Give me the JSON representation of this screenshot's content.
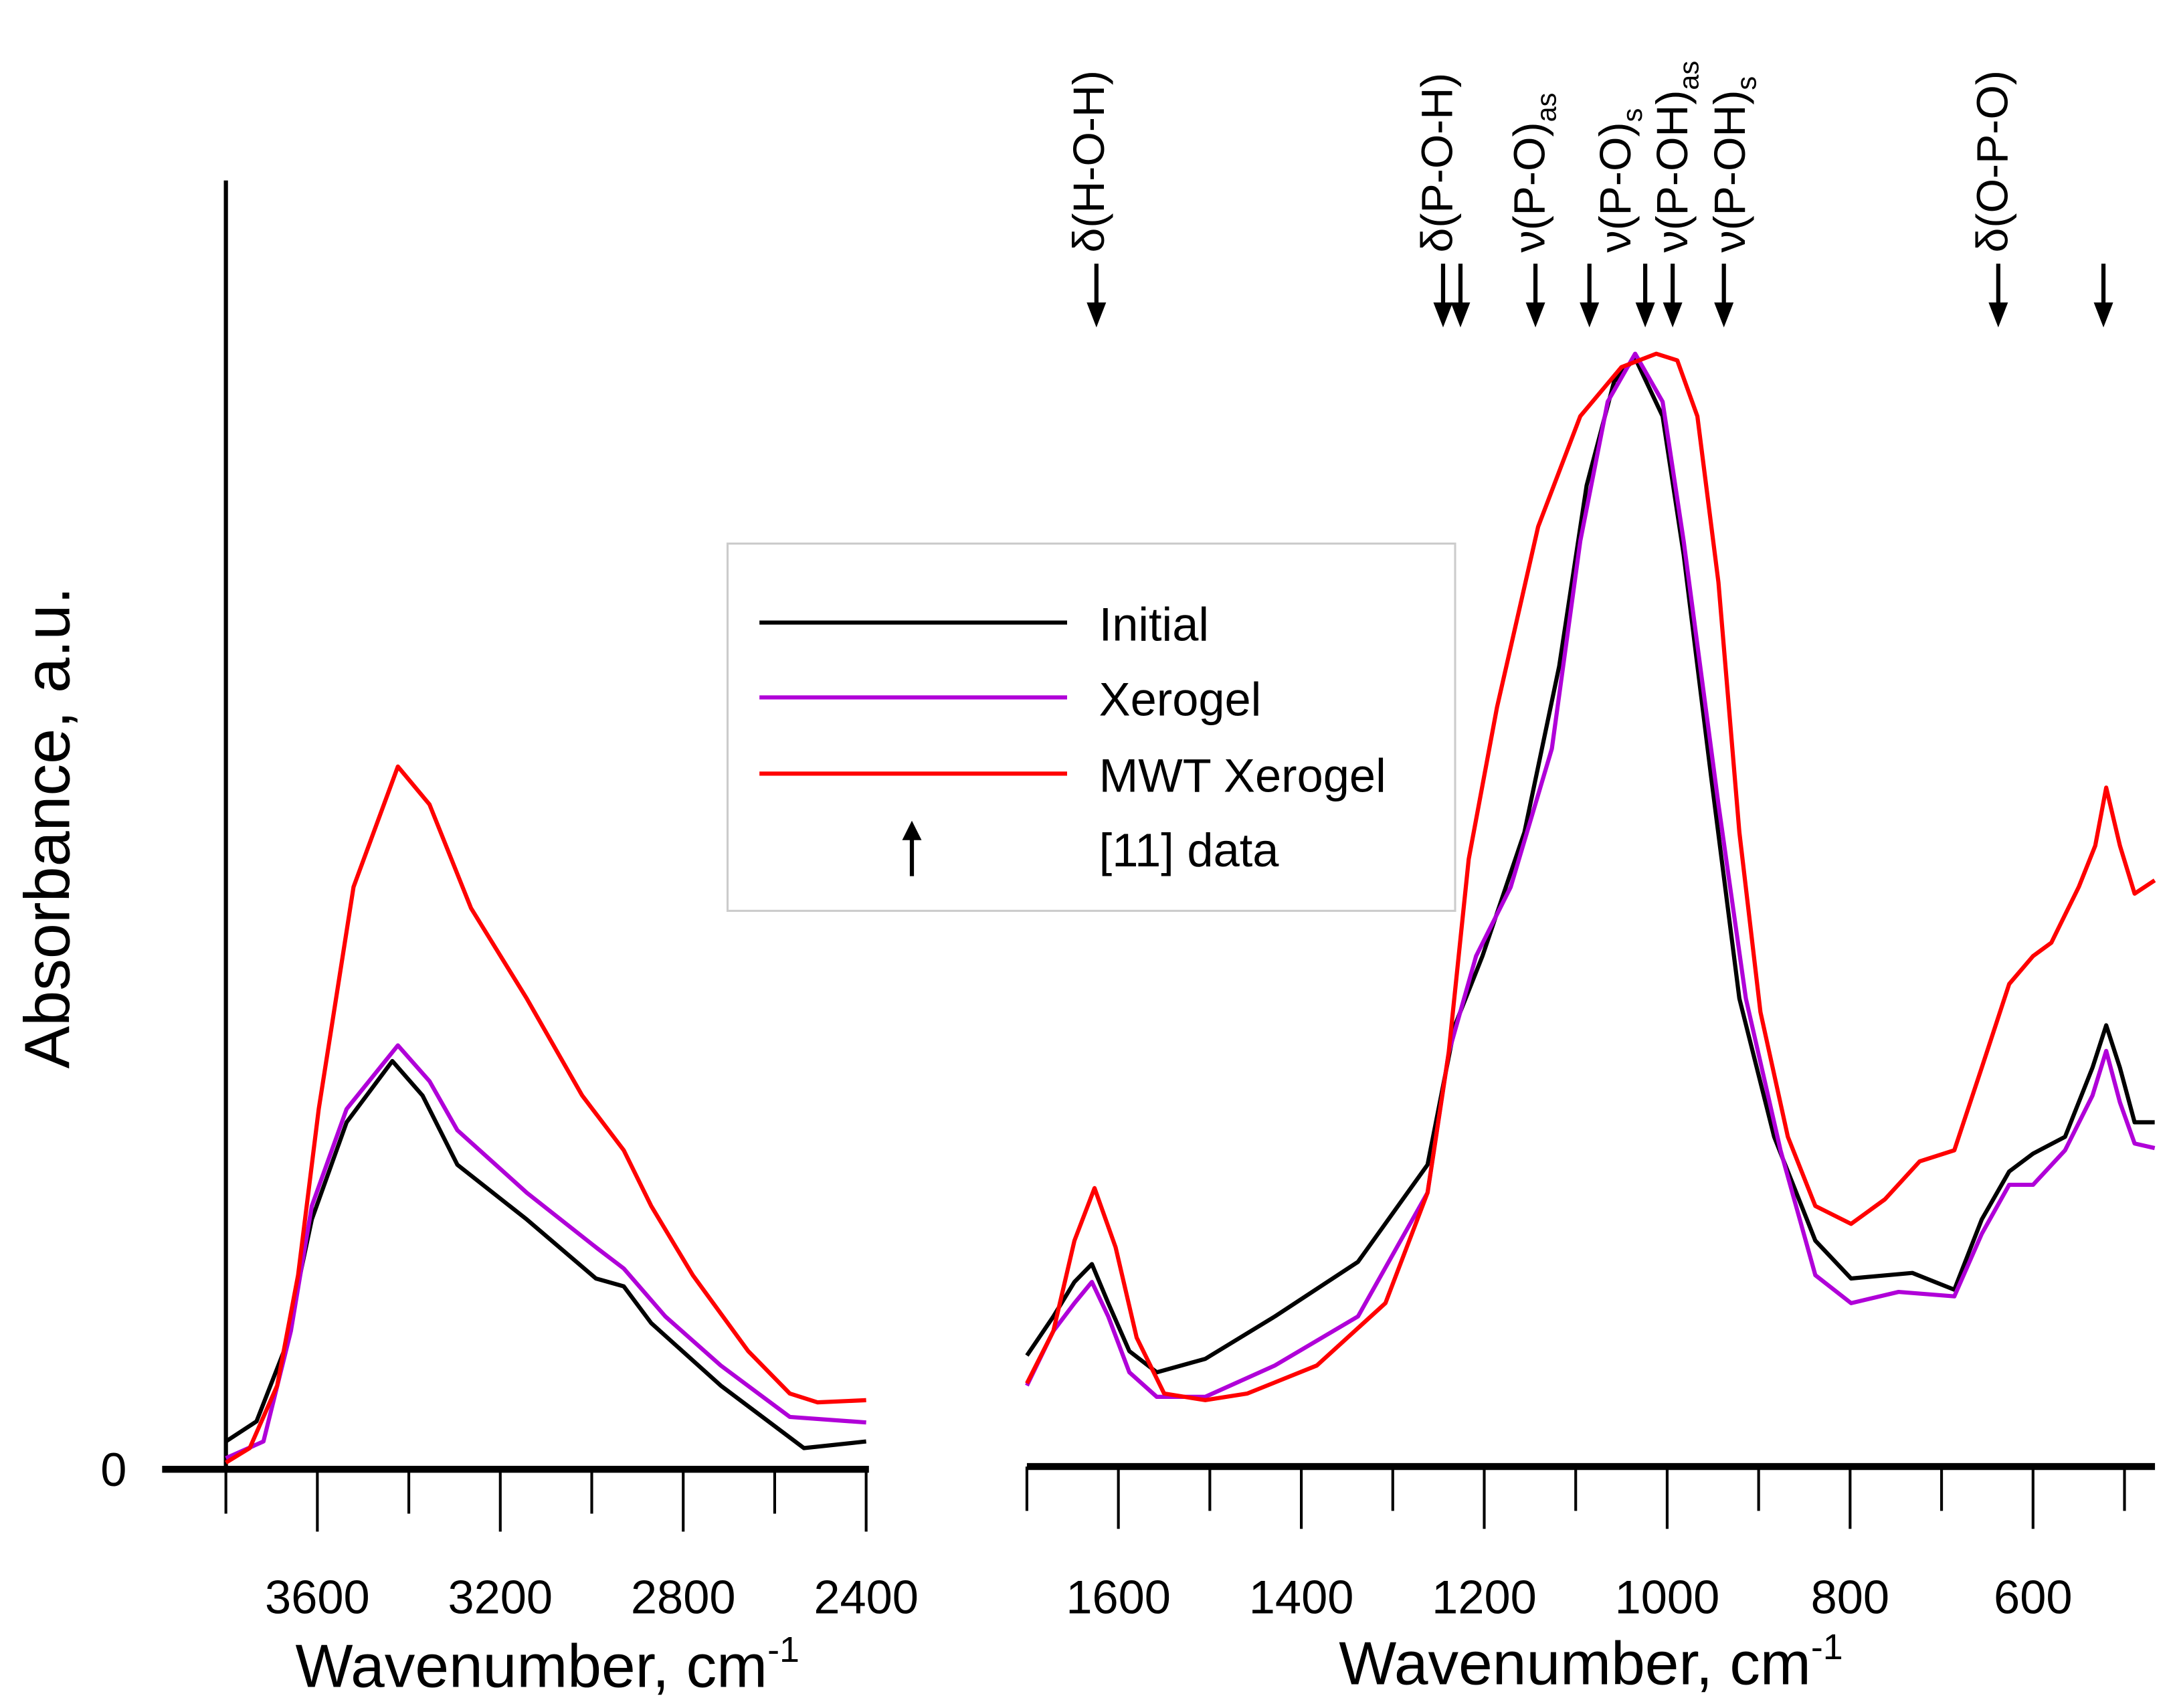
{
  "chart_data": {
    "type": "line",
    "ylabel": "Absorbance, a.u.",
    "y_zero_label": "0",
    "ylim": [
      0,
      1.15
    ],
    "panels": [
      {
        "xlabel": "Wavenumber, cm",
        "xlabel_sup": "-1",
        "xlim": [
          3800,
          2400
        ],
        "ticks": [
          "3600",
          "3200",
          "2800",
          "2400"
        ],
        "tick_values": [
          3600,
          3200,
          2800,
          2400
        ],
        "minor_tick_values": [
          3800,
          3400,
          3000,
          2600
        ]
      },
      {
        "xlabel": "Wavenumber, cm",
        "xlabel_sup": "-1",
        "xlim": [
          1700,
          466
        ],
        "ticks": [
          "1600",
          "1400",
          "1200",
          "1000",
          "800",
          "600"
        ],
        "tick_values": [
          1600,
          1400,
          1200,
          1000,
          800,
          600
        ],
        "minor_tick_values": [
          1700,
          1500,
          1300,
          1100,
          900,
          700,
          500
        ]
      }
    ],
    "series": [
      {
        "name": "Initial",
        "color": "#000000",
        "left": [
          [
            3800,
            0.025
          ],
          [
            3733,
            0.043
          ],
          [
            3673,
            0.106
          ],
          [
            3612,
            0.224
          ],
          [
            3536,
            0.311
          ],
          [
            3436,
            0.366
          ],
          [
            3370,
            0.335
          ],
          [
            3294,
            0.273
          ],
          [
            3142,
            0.224
          ],
          [
            2991,
            0.171
          ],
          [
            2930,
            0.164
          ],
          [
            2870,
            0.131
          ],
          [
            2718,
            0.075
          ],
          [
            2536,
            0.019
          ],
          [
            2400,
            0.025
          ]
        ],
        "right": [
          [
            1700,
            0.102
          ],
          [
            1671,
            0.137
          ],
          [
            1648,
            0.168
          ],
          [
            1629,
            0.184
          ],
          [
            1611,
            0.149
          ],
          [
            1588,
            0.106
          ],
          [
            1558,
            0.087
          ],
          [
            1505,
            0.099
          ],
          [
            1429,
            0.137
          ],
          [
            1338,
            0.186
          ],
          [
            1262,
            0.273
          ],
          [
            1232,
            0.398
          ],
          [
            1202,
            0.46
          ],
          [
            1156,
            0.571
          ],
          [
            1118,
            0.72
          ],
          [
            1088,
            0.882
          ],
          [
            1058,
            0.975
          ],
          [
            1035,
            0.996
          ],
          [
            1005,
            0.944
          ],
          [
            982,
            0.82
          ],
          [
            952,
            0.621
          ],
          [
            921,
            0.422
          ],
          [
            883,
            0.298
          ],
          [
            838,
            0.205
          ],
          [
            799,
            0.171
          ],
          [
            732,
            0.176
          ],
          [
            686,
            0.161
          ],
          [
            656,
            0.224
          ],
          [
            626,
            0.267
          ],
          [
            600,
            0.283
          ],
          [
            565,
            0.298
          ],
          [
            535,
            0.36
          ],
          [
            520,
            0.398
          ],
          [
            505,
            0.36
          ],
          [
            489,
            0.311
          ],
          [
            467,
            0.311
          ]
        ]
      },
      {
        "name": "Xerogel",
        "color": "#b000d8",
        "left": [
          [
            3800,
            0.01
          ],
          [
            3718,
            0.025
          ],
          [
            3658,
            0.124
          ],
          [
            3612,
            0.236
          ],
          [
            3536,
            0.323
          ],
          [
            3424,
            0.38
          ],
          [
            3355,
            0.348
          ],
          [
            3294,
            0.304
          ],
          [
            3142,
            0.248
          ],
          [
            2991,
            0.199
          ],
          [
            2930,
            0.18
          ],
          [
            2839,
            0.137
          ],
          [
            2718,
            0.093
          ],
          [
            2567,
            0.047
          ],
          [
            2400,
            0.042
          ]
        ],
        "right": [
          [
            1700,
            0.075
          ],
          [
            1671,
            0.124
          ],
          [
            1648,
            0.149
          ],
          [
            1629,
            0.168
          ],
          [
            1611,
            0.137
          ],
          [
            1588,
            0.087
          ],
          [
            1558,
            0.065
          ],
          [
            1505,
            0.065
          ],
          [
            1429,
            0.093
          ],
          [
            1338,
            0.137
          ],
          [
            1262,
            0.248
          ],
          [
            1239,
            0.373
          ],
          [
            1209,
            0.46
          ],
          [
            1171,
            0.522
          ],
          [
            1126,
            0.646
          ],
          [
            1095,
            0.832
          ],
          [
            1065,
            0.957
          ],
          [
            1035,
            1.0
          ],
          [
            1005,
            0.957
          ],
          [
            982,
            0.832
          ],
          [
            944,
            0.596
          ],
          [
            914,
            0.422
          ],
          [
            876,
            0.286
          ],
          [
            838,
            0.174
          ],
          [
            799,
            0.149
          ],
          [
            747,
            0.159
          ],
          [
            686,
            0.155
          ],
          [
            656,
            0.211
          ],
          [
            626,
            0.255
          ],
          [
            600,
            0.255
          ],
          [
            565,
            0.286
          ],
          [
            535,
            0.335
          ],
          [
            520,
            0.375
          ],
          [
            505,
            0.329
          ],
          [
            489,
            0.292
          ],
          [
            467,
            0.288
          ]
        ]
      },
      {
        "name": "MWT Xerogel",
        "color": "#ff0000",
        "left": [
          [
            3800,
            0.006
          ],
          [
            3748,
            0.019
          ],
          [
            3688,
            0.075
          ],
          [
            3642,
            0.174
          ],
          [
            3597,
            0.323
          ],
          [
            3521,
            0.522
          ],
          [
            3424,
            0.63
          ],
          [
            3355,
            0.596
          ],
          [
            3264,
            0.503
          ],
          [
            3142,
            0.422
          ],
          [
            3021,
            0.335
          ],
          [
            2930,
            0.286
          ],
          [
            2870,
            0.236
          ],
          [
            2779,
            0.174
          ],
          [
            2658,
            0.106
          ],
          [
            2567,
            0.068
          ],
          [
            2506,
            0.06
          ],
          [
            2400,
            0.062
          ]
        ],
        "right": [
          [
            1700,
            0.077
          ],
          [
            1671,
            0.124
          ],
          [
            1648,
            0.205
          ],
          [
            1626,
            0.252
          ],
          [
            1603,
            0.199
          ],
          [
            1580,
            0.118
          ],
          [
            1550,
            0.068
          ],
          [
            1505,
            0.062
          ],
          [
            1459,
            0.068
          ],
          [
            1383,
            0.093
          ],
          [
            1308,
            0.149
          ],
          [
            1262,
            0.248
          ],
          [
            1239,
            0.373
          ],
          [
            1217,
            0.547
          ],
          [
            1186,
            0.683
          ],
          [
            1141,
            0.845
          ],
          [
            1095,
            0.944
          ],
          [
            1050,
            0.988
          ],
          [
            1012,
            1.0
          ],
          [
            989,
            0.994
          ],
          [
            967,
            0.944
          ],
          [
            944,
            0.795
          ],
          [
            921,
            0.571
          ],
          [
            898,
            0.41
          ],
          [
            868,
            0.298
          ],
          [
            838,
            0.236
          ],
          [
            799,
            0.22
          ],
          [
            762,
            0.242
          ],
          [
            724,
            0.276
          ],
          [
            686,
            0.286
          ],
          [
            656,
            0.36
          ],
          [
            626,
            0.435
          ],
          [
            600,
            0.46
          ],
          [
            580,
            0.472
          ],
          [
            550,
            0.522
          ],
          [
            532,
            0.559
          ],
          [
            520,
            0.611
          ],
          [
            505,
            0.559
          ],
          [
            489,
            0.516
          ],
          [
            467,
            0.528
          ]
        ]
      }
    ],
    "legend": {
      "placement": "center",
      "entries": [
        "Initial",
        "Xerogel",
        "MWT Xerogel"
      ],
      "arrow_entry": "[11] data"
    },
    "reference_arrows": [
      1624,
      1245,
      1226,
      1144,
      1085,
      1024,
      994,
      938,
      638,
      523
    ],
    "annotations": [
      {
        "text": "δ(H-O-H)",
        "sub": "",
        "x": 1616
      },
      {
        "text": "δ(P-O-H)",
        "sub": "",
        "x": 1235
      },
      {
        "text": "ν(P-O)",
        "sub": "as",
        "x": 1134
      },
      {
        "text": "ν(P-O)",
        "sub": "s",
        "x": 1040
      },
      {
        "text": "ν(P-OH)",
        "sub": "as",
        "x": 978
      },
      {
        "text": "ν(P-OH)",
        "sub": "s",
        "x": 915
      },
      {
        "text": "δ(O-P-O)",
        "sub": "",
        "x": 628
      }
    ]
  }
}
